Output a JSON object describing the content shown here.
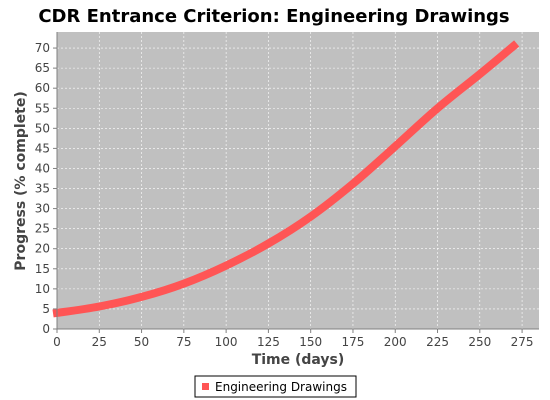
{
  "chart_data": {
    "type": "line",
    "title": "CDR Entrance Criterion: Engineering Drawings",
    "xlabel": "Time (days)",
    "ylabel": "Progress (% complete)",
    "xlim": [
      0,
      285
    ],
    "ylim": [
      0,
      74
    ],
    "xticks": [
      0,
      25,
      50,
      75,
      100,
      125,
      150,
      175,
      200,
      225,
      250,
      275
    ],
    "yticks": [
      0,
      5,
      10,
      15,
      20,
      25,
      30,
      35,
      40,
      45,
      50,
      55,
      60,
      65,
      70
    ],
    "grid": true,
    "legend_position": "bottom",
    "plot_background": "#c0c0c0",
    "series": [
      {
        "name": "Engineering Drawings",
        "color": "#ff5555",
        "x": [
          0,
          25,
          50,
          75,
          100,
          125,
          150,
          175,
          200,
          225,
          250,
          270
        ],
        "y": [
          4,
          5.6,
          8,
          11.3,
          15.8,
          21.3,
          28,
          36.2,
          45.5,
          55,
          63.5,
          70.5
        ]
      }
    ]
  }
}
